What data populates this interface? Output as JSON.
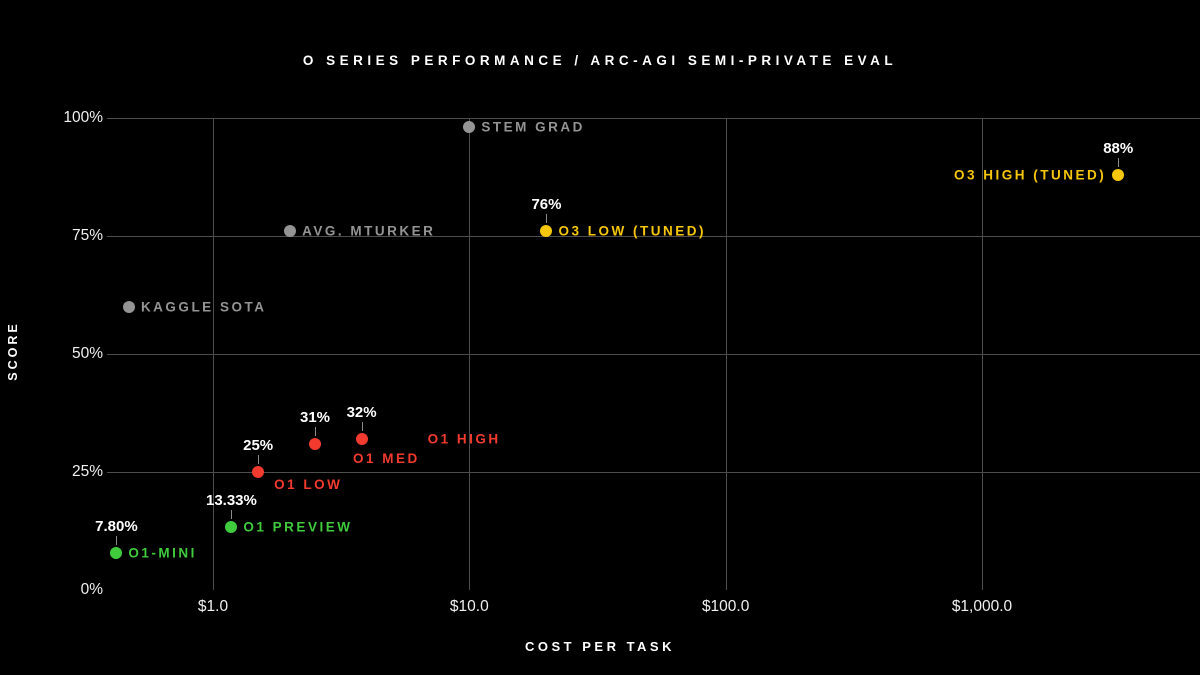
{
  "title": "O SERIES PERFORMANCE / ARC-AGI SEMI-PRIVATE EVAL",
  "colors": {
    "background": "#000000",
    "grid": "#4d4d4d",
    "tick_text": "#f0f0f0",
    "value_label_text": "#ffffff",
    "leader_line": "#8a8a8a",
    "series_human": "#949494",
    "series_o3": "#f6c70a",
    "series_o1": "#f23a2e",
    "series_o1_early": "#3fcb3c"
  },
  "chart_data": {
    "type": "scatter",
    "title": "O SERIES PERFORMANCE / ARC-AGI SEMI-PRIVATE EVAL",
    "x_axis": {
      "label": "COST PER TASK",
      "scale": "log",
      "ticks": [
        1,
        10,
        100,
        1000
      ],
      "tick_labels": [
        "$1.0",
        "$10.0",
        "$100.0",
        "$1,000.0"
      ],
      "range_approx": [
        0.35,
        6000
      ]
    },
    "y_axis": {
      "label": "SCORE",
      "scale": "linear",
      "ticks": [
        0,
        25,
        50,
        75,
        100
      ],
      "tick_labels": [
        "0%",
        "25%",
        "50%",
        "75%",
        "100%"
      ],
      "range": [
        0,
        100
      ]
    },
    "grid": true,
    "legend": false,
    "series": [
      {
        "name": "human-baselines",
        "color_key": "series_human",
        "points": [
          {
            "label": "STEM GRAD",
            "cost": 10,
            "score": 98,
            "value_label": null,
            "label_side": "right"
          },
          {
            "label": "AVG. MTURKER",
            "cost": 2,
            "score": 76,
            "value_label": null,
            "label_side": "right"
          },
          {
            "label": "KAGGLE SOTA",
            "cost": 0.47,
            "score": 60,
            "value_label": null,
            "label_side": "right"
          }
        ]
      },
      {
        "name": "o3",
        "color_key": "series_o3",
        "points": [
          {
            "label": "O3 LOW (TUNED)",
            "cost": 20,
            "score": 76,
            "value_label": "76%",
            "label_side": "right"
          },
          {
            "label": "O3 HIGH (TUNED)",
            "cost": 3400,
            "score": 88,
            "value_label": "88%",
            "label_side": "left"
          }
        ]
      },
      {
        "name": "o1",
        "color_key": "series_o1",
        "points": [
          {
            "label": "O1 LOW",
            "cost": 1.5,
            "score": 25,
            "value_label": "25%",
            "label_side": "below-right"
          },
          {
            "label": "O1 MED",
            "cost": 2.5,
            "score": 31,
            "value_label": "31%",
            "label_side": "below-right-far"
          },
          {
            "label": "O1 HIGH",
            "cost": 3.8,
            "score": 32,
            "value_label": "32%",
            "label_side": "right-far"
          }
        ]
      },
      {
        "name": "o1-early",
        "color_key": "series_o1_early",
        "points": [
          {
            "label": "O1 PREVIEW",
            "cost": 1.18,
            "score": 13.33,
            "value_label": "13.33%",
            "label_side": "right"
          },
          {
            "label": "O1-MINI",
            "cost": 0.42,
            "score": 7.8,
            "value_label": "7.80%",
            "label_side": "right"
          }
        ]
      }
    ]
  }
}
